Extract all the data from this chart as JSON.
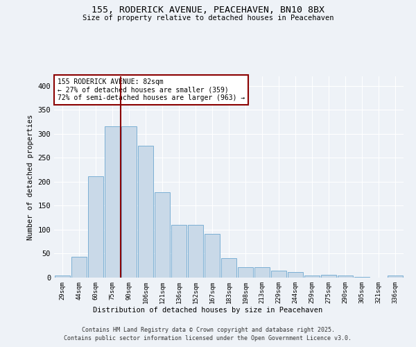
{
  "title_line1": "155, RODERICK AVENUE, PEACEHAVEN, BN10 8BX",
  "title_line2": "Size of property relative to detached houses in Peacehaven",
  "xlabel": "Distribution of detached houses by size in Peacehaven",
  "ylabel": "Number of detached properties",
  "categories": [
    "29sqm",
    "44sqm",
    "60sqm",
    "75sqm",
    "90sqm",
    "106sqm",
    "121sqm",
    "136sqm",
    "152sqm",
    "167sqm",
    "183sqm",
    "198sqm",
    "213sqm",
    "229sqm",
    "244sqm",
    "259sqm",
    "275sqm",
    "290sqm",
    "305sqm",
    "321sqm",
    "336sqm"
  ],
  "values": [
    5,
    44,
    212,
    315,
    315,
    275,
    178,
    110,
    110,
    91,
    40,
    22,
    22,
    14,
    12,
    5,
    6,
    5,
    2,
    0,
    5
  ],
  "bar_color": "#c9d9e8",
  "bar_edge_color": "#7bafd4",
  "vline_x": 3.5,
  "vline_color": "#8b0000",
  "annotation_text": "155 RODERICK AVENUE: 82sqm\n← 27% of detached houses are smaller (359)\n72% of semi-detached houses are larger (963) →",
  "ylim": [
    0,
    420
  ],
  "yticks": [
    0,
    50,
    100,
    150,
    200,
    250,
    300,
    350,
    400
  ],
  "background_color": "#eef2f7",
  "grid_color": "#ffffff",
  "footer_line1": "Contains HM Land Registry data © Crown copyright and database right 2025.",
  "footer_line2": "Contains public sector information licensed under the Open Government Licence v3.0."
}
